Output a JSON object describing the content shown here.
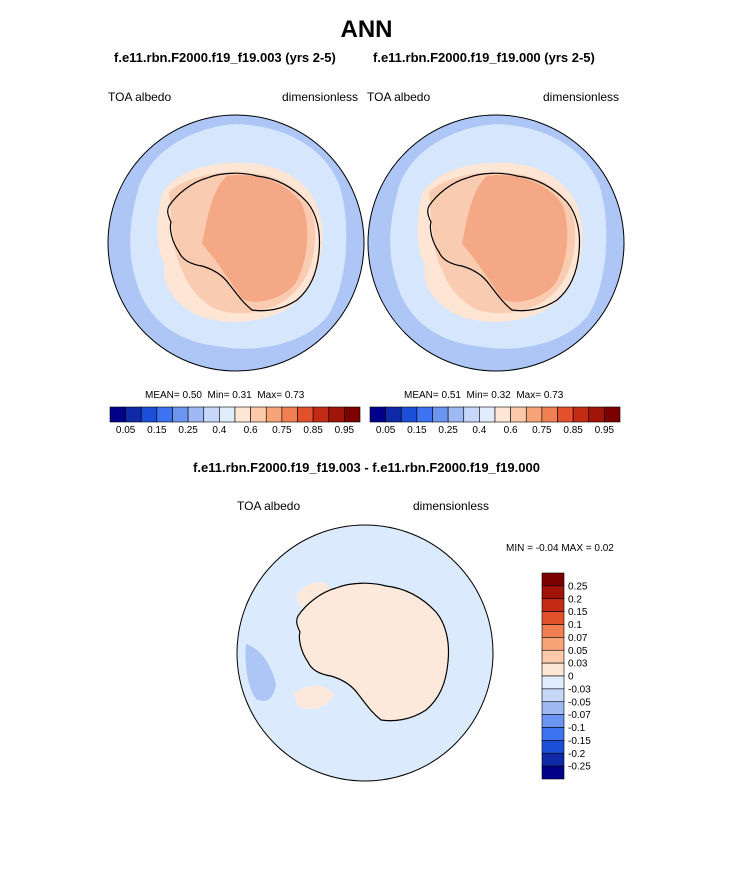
{
  "page": {
    "title": "ANN",
    "diff_title": "f.e11.rbn.F2000.f19_f19.003 - f.e11.rbn.F2000.f19_f19.000"
  },
  "panels": [
    {
      "case": "f.e11.rbn.F2000.f19_f19.003 (yrs 2-5)",
      "left_label": "TOA albedo",
      "right_label": "dimensionless",
      "stats": {
        "mean_label": "MEAN=",
        "mean": "0.50",
        "min_label": "Min=",
        "min": "0.31",
        "max_label": "Max=",
        "max": "0.73"
      }
    },
    {
      "case": "f.e11.rbn.F2000.f19_f19.000 (yrs 2-5)",
      "left_label": "TOA albedo",
      "right_label": "dimensionless",
      "stats": {
        "mean_label": "MEAN=",
        "mean": "0.51",
        "min_label": "Min=",
        "min": "0.32",
        "max_label": "Max=",
        "max": "0.73"
      }
    }
  ],
  "diff_panel": {
    "left_label": "TOA albedo",
    "right_label": "dimensionless",
    "min_label": "MIN =",
    "min": "-0.04",
    "max_label": "MAX =",
    "max": "0.02"
  },
  "colors": {
    "abs_scale": [
      "#00008b",
      "#0e2aa6",
      "#1b4fd8",
      "#3d73f0",
      "#6c95f2",
      "#9fb9f5",
      "#c6d7fa",
      "#e1ecfd",
      "#ffe7d6",
      "#fcc9aa",
      "#f8a479",
      "#f07f52",
      "#e2512c",
      "#c42b14",
      "#a01409",
      "#7d0000"
    ],
    "diff_scale": [
      "#00008b",
      "#0e2aa6",
      "#1b4fd8",
      "#3d73f0",
      "#6c95f2",
      "#9fb9f5",
      "#c6d7fa",
      "#e1ecfd",
      "#ffe7d6",
      "#fcc9aa",
      "#f8a479",
      "#f07f52",
      "#e2512c",
      "#c42b14",
      "#a01409",
      "#7d0000"
    ],
    "ocean": "#d6e6fc",
    "sea_ice_low": "#aec6f6",
    "land_outer": "#ffe5d3",
    "land_mid": "#f9cbb0",
    "land_inner": "#f4a886",
    "diff_ocean": "#dceafd",
    "diff_land": "#fde9dc",
    "diff_neg": "#aec6f6"
  },
  "chart_data": [
    {
      "type": "heatmap",
      "title": "f.e11.rbn.F2000.f19_f19.003 (yrs 2-5)",
      "variable": "TOA albedo",
      "units": "dimensionless",
      "stats": {
        "mean": 0.5,
        "min": 0.31,
        "max": 0.73
      },
      "colorbar": {
        "levels": [
          0.05,
          0.1,
          0.15,
          0.2,
          0.25,
          0.3,
          0.4,
          0.5,
          0.6,
          0.7,
          0.75,
          0.8,
          0.85,
          0.9,
          0.95
        ],
        "tick_labels": [
          "0.05",
          "0.15",
          "0.25",
          "0.4",
          "0.6",
          "0.75",
          "0.85",
          "0.95"
        ]
      }
    },
    {
      "type": "heatmap",
      "title": "f.e11.rbn.F2000.f19_f19.000 (yrs 2-5)",
      "variable": "TOA albedo",
      "units": "dimensionless",
      "stats": {
        "mean": 0.51,
        "min": 0.32,
        "max": 0.73
      },
      "colorbar": {
        "levels": [
          0.05,
          0.1,
          0.15,
          0.2,
          0.25,
          0.3,
          0.4,
          0.5,
          0.6,
          0.7,
          0.75,
          0.8,
          0.85,
          0.9,
          0.95
        ],
        "tick_labels": [
          "0.05",
          "0.15",
          "0.25",
          "0.4",
          "0.6",
          "0.75",
          "0.85",
          "0.95"
        ]
      }
    },
    {
      "type": "heatmap",
      "title": "f.e11.rbn.F2000.f19_f19.003 - f.e11.rbn.F2000.f19_f19.000",
      "variable": "TOA albedo",
      "units": "dimensionless",
      "stats": {
        "min": -0.04,
        "max": 0.02
      },
      "colorbar": {
        "levels": [
          0.25,
          0.2,
          0.15,
          0.1,
          0.07,
          0.05,
          0.03,
          0,
          -0.03,
          -0.05,
          -0.07,
          -0.1,
          -0.15,
          -0.2,
          -0.25
        ],
        "tick_labels": [
          "0.25",
          "0.2",
          "0.15",
          "0.1",
          "0.07",
          "0.05",
          "0.03",
          "0",
          "-0.03",
          "-0.05",
          "-0.07",
          "-0.1",
          "-0.15",
          "-0.2",
          "-0.25"
        ]
      }
    }
  ]
}
